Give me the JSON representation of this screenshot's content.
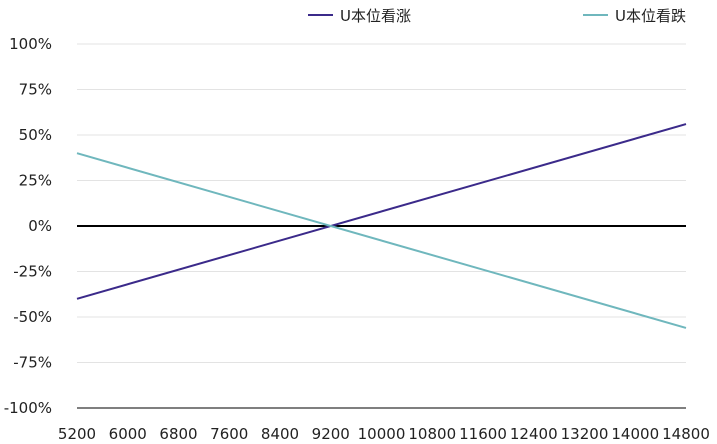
{
  "chart_data": {
    "type": "line",
    "title": "",
    "xlabel": "",
    "ylabel": "",
    "x": [
      5200,
      6000,
      6800,
      7600,
      8400,
      9200,
      10000,
      10800,
      11600,
      12400,
      13200,
      14000,
      14800
    ],
    "x_tick_labels": [
      "5200",
      "6000",
      "6800",
      "7600",
      "8400",
      "9200",
      "10000",
      "10800",
      "11600",
      "12400",
      "13200",
      "14000",
      "14800"
    ],
    "y_ticks": [
      100,
      75,
      50,
      25,
      0,
      -25,
      -50,
      -75,
      -100
    ],
    "y_tick_labels": [
      "100%",
      "75%",
      "50%",
      "25%",
      "0%",
      "-25%",
      "-50%",
      "-75%",
      "-100%"
    ],
    "ylim": [
      -100,
      100
    ],
    "xlim": [
      5200,
      14800
    ],
    "grid": true,
    "legend_position": "top-right",
    "series": [
      {
        "name": "U本位看涨",
        "color": "#3b2a8a",
        "points": [
          [
            5200,
            -40
          ],
          [
            14800,
            56
          ]
        ]
      },
      {
        "name": "U本位看跌",
        "color": "#6fb7bd",
        "points": [
          [
            5200,
            40
          ],
          [
            14800,
            -56
          ]
        ]
      }
    ],
    "reference_line": {
      "y": 0,
      "color": "#000000"
    },
    "baseline": {
      "y": -100,
      "color": "#555555"
    }
  }
}
